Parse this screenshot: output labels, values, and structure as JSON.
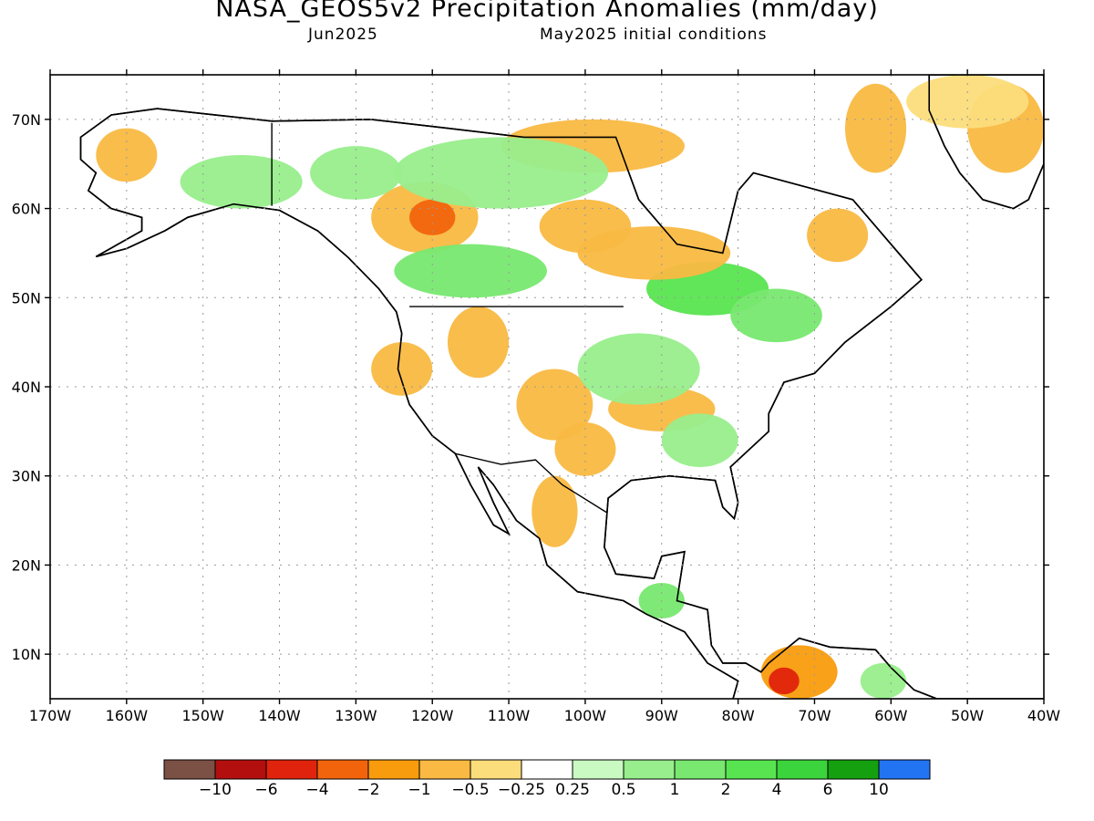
{
  "title": "NASA_GEOS5v2 Precipitation Anomalies (mm/day)",
  "subtitle_left": "Jun2025",
  "subtitle_right": "May2025 initial conditions",
  "map": {
    "lon_ticks": [
      "170W",
      "160W",
      "150W",
      "140W",
      "130W",
      "120W",
      "110W",
      "100W",
      "90W",
      "80W",
      "70W",
      "60W",
      "50W",
      "40W"
    ],
    "lat_ticks": [
      "70N",
      "60N",
      "50N",
      "40N",
      "30N",
      "20N",
      "10N"
    ],
    "extent": {
      "lon": [
        -170,
        -40
      ],
      "lat": [
        5,
        75
      ]
    },
    "grid": "dotted"
  },
  "colorbar": {
    "colors": [
      "#7b5045",
      "#b30f0f",
      "#e0230c",
      "#f2640c",
      "#f89c0d",
      "#f9b942",
      "#fbdd7b",
      "#ffffff",
      "#c8fac1",
      "#98ee8c",
      "#78e870",
      "#58e450",
      "#3cd43c",
      "#15a010",
      "#2374f2"
    ],
    "labels": [
      "−10",
      "−6",
      "−4",
      "−2",
      "−1",
      "−0.5",
      "−0.25",
      "0.25",
      "0.5",
      "1",
      "2",
      "4",
      "6",
      "10"
    ]
  },
  "anomaly_patches": [
    {
      "lon": -121,
      "lat": 59,
      "rx": 7,
      "ry": 4,
      "color": "#f9b942"
    },
    {
      "lon": -120,
      "lat": 59,
      "rx": 3,
      "ry": 2,
      "color": "#f2640c"
    },
    {
      "lon": -115,
      "lat": 53,
      "rx": 10,
      "ry": 3,
      "color": "#78e870"
    },
    {
      "lon": -84,
      "lat": 51,
      "rx": 8,
      "ry": 3,
      "color": "#58e450"
    },
    {
      "lon": -91,
      "lat": 55,
      "rx": 10,
      "ry": 3,
      "color": "#f9b942"
    },
    {
      "lon": -100,
      "lat": 58,
      "rx": 6,
      "ry": 3,
      "color": "#f9b942"
    },
    {
      "lon": -99,
      "lat": 67,
      "rx": 12,
      "ry": 3,
      "color": "#f9b942"
    },
    {
      "lon": -111,
      "lat": 64,
      "rx": 14,
      "ry": 4,
      "color": "#98ee8c"
    },
    {
      "lon": -62,
      "lat": 69,
      "rx": 4,
      "ry": 5,
      "color": "#f9b942"
    },
    {
      "lon": -45,
      "lat": 69,
      "rx": 5,
      "ry": 5,
      "color": "#f9b942"
    },
    {
      "lon": -50,
      "lat": 72,
      "rx": 8,
      "ry": 3,
      "color": "#fbdd7b"
    },
    {
      "lon": -114,
      "lat": 45,
      "rx": 4,
      "ry": 4,
      "color": "#f9b942"
    },
    {
      "lon": -124,
      "lat": 42,
      "rx": 4,
      "ry": 3,
      "color": "#f9b942"
    },
    {
      "lon": -104,
      "lat": 38,
      "rx": 5,
      "ry": 4,
      "color": "#f9b942"
    },
    {
      "lon": -90,
      "lat": 37.5,
      "rx": 7,
      "ry": 2.5,
      "color": "#f9b942"
    },
    {
      "lon": -100,
      "lat": 33,
      "rx": 4,
      "ry": 3,
      "color": "#f9b942"
    },
    {
      "lon": -104,
      "lat": 26,
      "rx": 3,
      "ry": 4,
      "color": "#f9b942"
    },
    {
      "lon": -93,
      "lat": 42,
      "rx": 8,
      "ry": 4,
      "color": "#98ee8c"
    },
    {
      "lon": -85,
      "lat": 34,
      "rx": 5,
      "ry": 3,
      "color": "#98ee8c"
    },
    {
      "lon": -72,
      "lat": 8,
      "rx": 5,
      "ry": 3,
      "color": "#f89c0d"
    },
    {
      "lon": -74,
      "lat": 7,
      "rx": 2,
      "ry": 1.5,
      "color": "#e0230c"
    },
    {
      "lon": -61,
      "lat": 7,
      "rx": 3,
      "ry": 2,
      "color": "#98ee8c"
    },
    {
      "lon": -90,
      "lat": 16,
      "rx": 3,
      "ry": 2,
      "color": "#78e870"
    },
    {
      "lon": -145,
      "lat": 63,
      "rx": 8,
      "ry": 3,
      "color": "#98ee8c"
    },
    {
      "lon": -160,
      "lat": 66,
      "rx": 4,
      "ry": 3,
      "color": "#f9b942"
    },
    {
      "lon": -130,
      "lat": 64,
      "rx": 6,
      "ry": 3,
      "color": "#98ee8c"
    },
    {
      "lon": -67,
      "lat": 57,
      "rx": 4,
      "ry": 3,
      "color": "#f9b942"
    },
    {
      "lon": -75,
      "lat": 48,
      "rx": 6,
      "ry": 3,
      "color": "#78e870"
    }
  ]
}
